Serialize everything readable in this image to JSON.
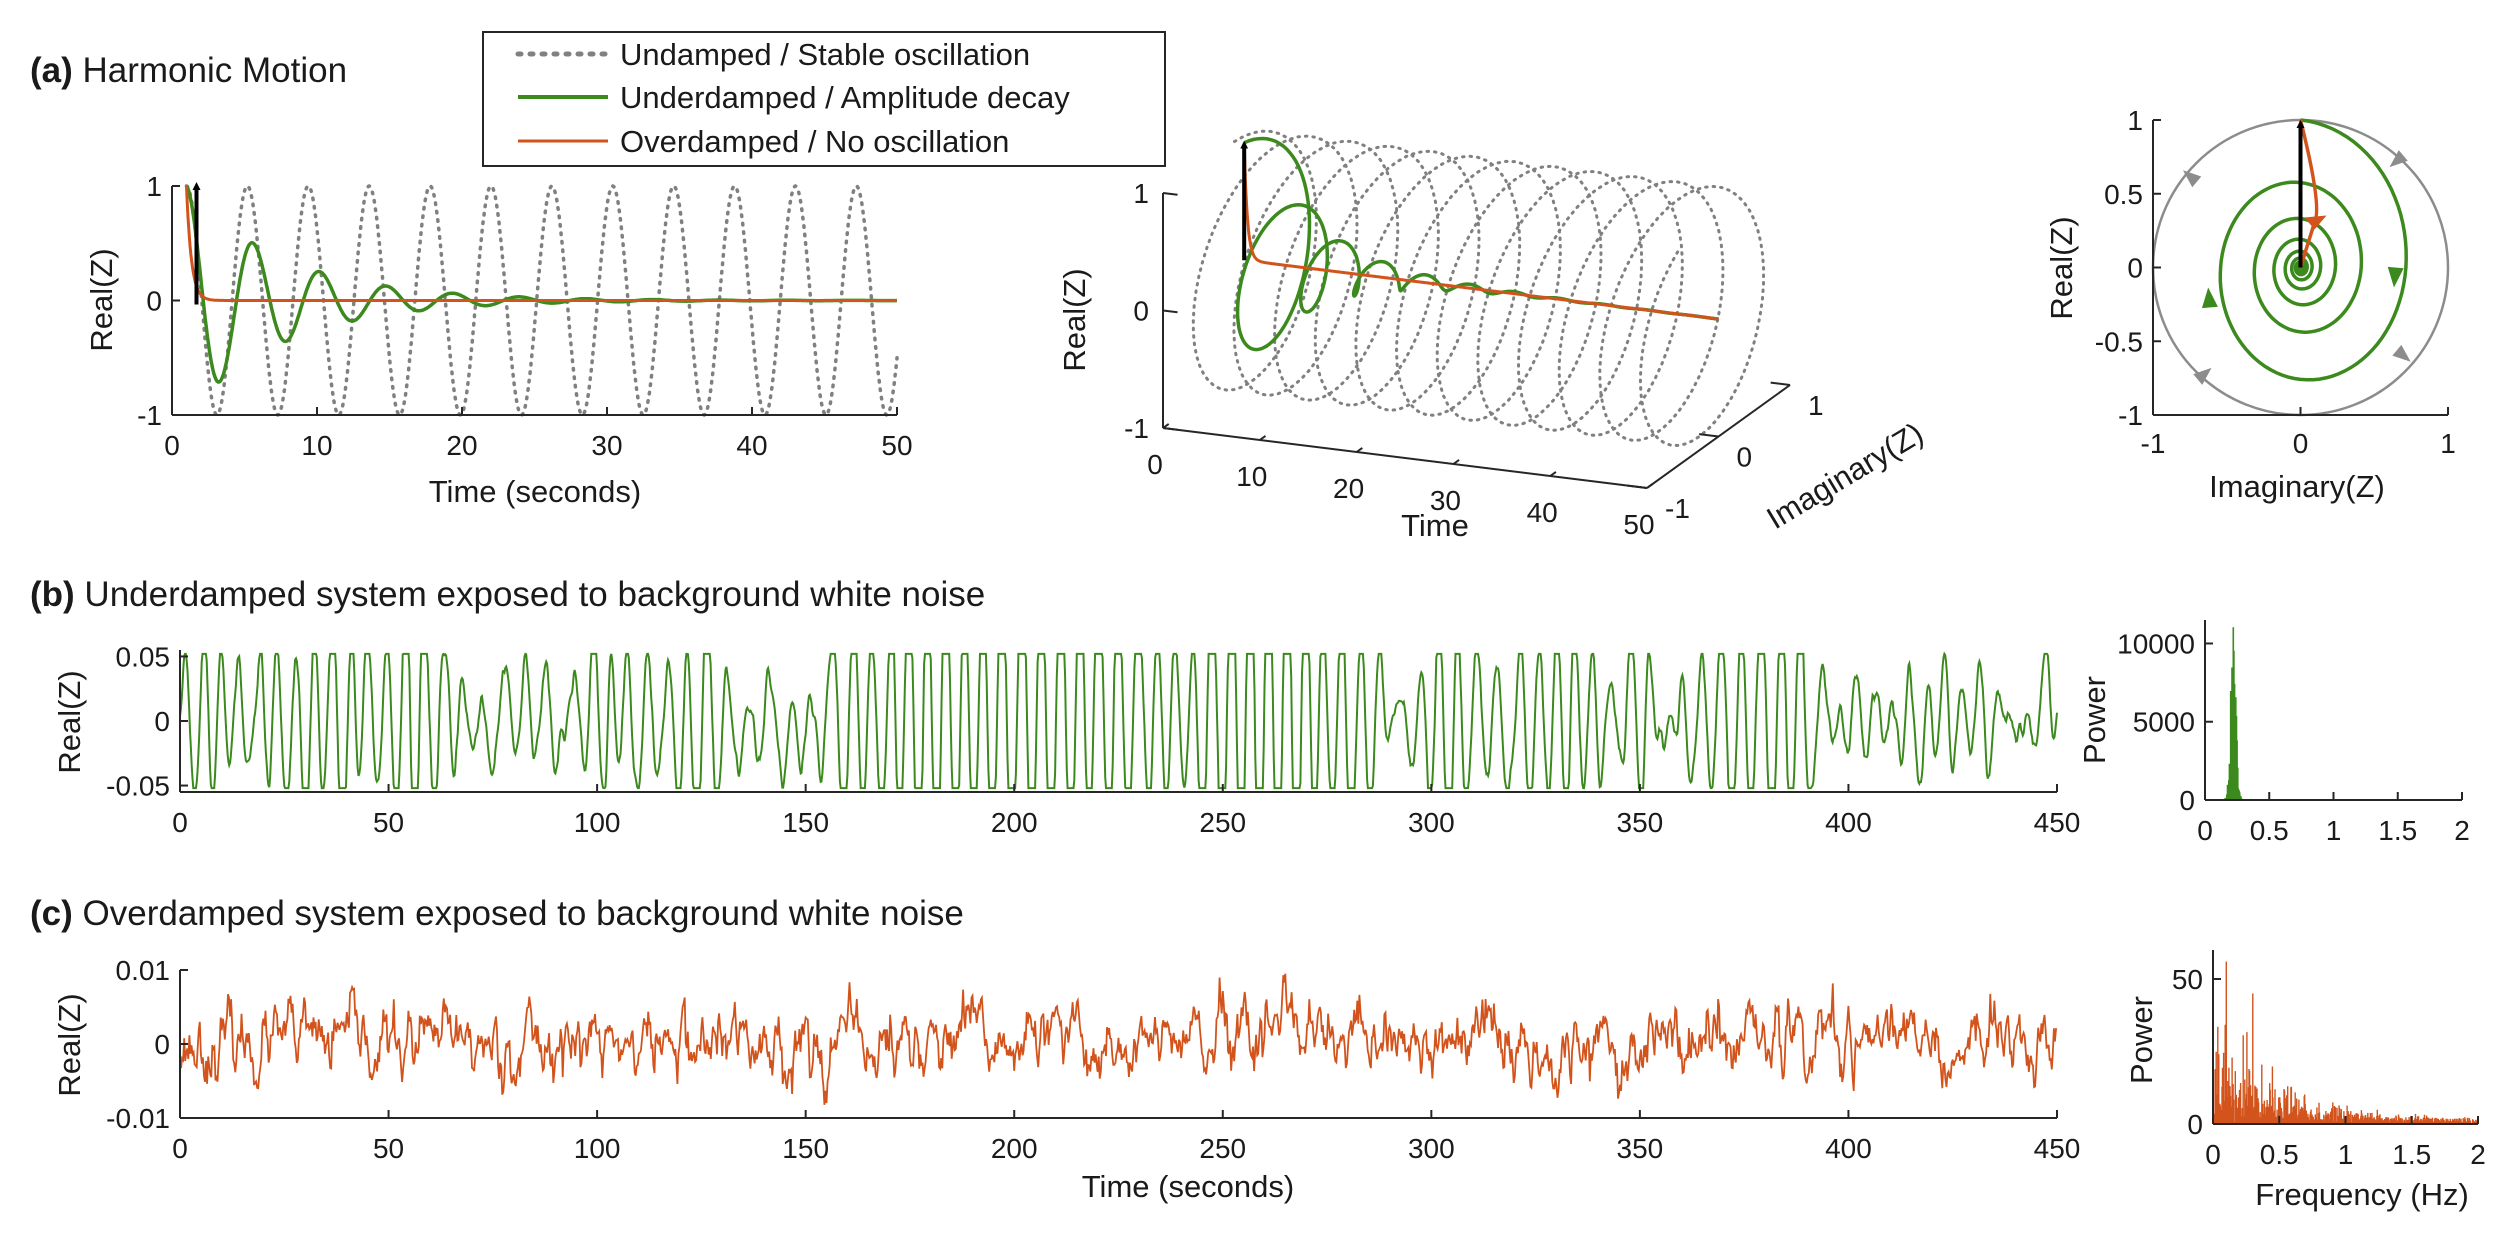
{
  "colors": {
    "undamped": "#808080",
    "underdamped": "#3c8a1e",
    "overdamped": "#d2541c",
    "arrow": "#000000",
    "axis": "#262626"
  },
  "legend": {
    "items": [
      {
        "label": "Undamped / Stable oscillation",
        "style": "dotted",
        "color": "#808080"
      },
      {
        "label": "Underdamped / Amplitude decay",
        "style": "solid",
        "color": "#3c8a1e"
      },
      {
        "label": "Overdamped / No oscillation",
        "style": "solid",
        "color": "#d2541c"
      }
    ]
  },
  "panels": {
    "a": {
      "letter": "(a)",
      "title": " Harmonic Motion"
    },
    "b": {
      "letter": "(b)",
      "title": " Underdamped system exposed to background white noise"
    },
    "c": {
      "letter": "(c)",
      "title": " Overdamped system exposed to background white noise"
    }
  },
  "chart_data": [
    {
      "id": "a1",
      "type": "line",
      "xlabel": "Time (seconds)",
      "ylabel": "Real(Z)",
      "xlim": [
        0,
        50
      ],
      "ylim": [
        -1,
        1
      ],
      "xticks": [
        "0",
        "10",
        "20",
        "30",
        "40",
        "50"
      ],
      "yticks": [
        "-1",
        "0",
        "1"
      ],
      "series": [
        {
          "name": "Undamped / Stable oscillation",
          "kind": "undamped",
          "start": 1,
          "period": 4.2,
          "amplitude": 1,
          "decay": 0
        },
        {
          "name": "Underdamped / Amplitude decay",
          "kind": "underdamped",
          "start": 1,
          "period": 4.6,
          "amplitude": 1,
          "decay": 0.15
        },
        {
          "name": "Overdamped / No oscillation",
          "kind": "overdamped",
          "start": 1,
          "amplitude": 1,
          "decay": 3.0
        }
      ],
      "annotations": [
        {
          "type": "arrow",
          "x": 1,
          "from": 0,
          "to": 1
        }
      ]
    },
    {
      "id": "a2",
      "type": "line3d",
      "xlabel": "Time",
      "ylabel": "Imaginary(Z)",
      "zlabel": "Real(Z)",
      "xlim": [
        0,
        50
      ],
      "ylim": [
        -1,
        1
      ],
      "zlim": [
        -1,
        1
      ],
      "xticks": [
        "0",
        "10",
        "20",
        "30",
        "40",
        "50"
      ],
      "yticks": [
        "-1",
        "0",
        "1"
      ],
      "zticks": [
        "-1",
        "0",
        "1"
      ]
    },
    {
      "id": "a3",
      "type": "phase",
      "xlabel": "Imaginary(Z)",
      "ylabel": "Real(Z)",
      "xlim": [
        -1,
        1
      ],
      "ylim": [
        -1,
        1
      ],
      "xticks": [
        "-1",
        "0",
        "1"
      ],
      "yticks": [
        "-1",
        "-0.5",
        "0",
        "0.5",
        "1"
      ]
    },
    {
      "id": "b",
      "type": "line",
      "xlabel": "",
      "ylabel": "Real(Z)",
      "xlim": [
        0,
        450
      ],
      "ylim": [
        -0.055,
        0.055
      ],
      "xticks": [
        "0",
        "50",
        "100",
        "150",
        "200",
        "250",
        "300",
        "350",
        "400",
        "450"
      ],
      "yticks": [
        "-0.05",
        "0",
        "0.05"
      ],
      "series": [
        {
          "name": "Underdamped",
          "kind": "noise-underdamped",
          "period": 4.6,
          "amplitude": 0.025
        }
      ]
    },
    {
      "id": "b_spec",
      "type": "bar",
      "xlabel": "",
      "ylabel": "Power",
      "xlim": [
        0,
        2
      ],
      "ylim": [
        0,
        11500
      ],
      "xticks": [
        "0",
        "0.5",
        "1",
        "1.5",
        "2"
      ],
      "yticks": [
        "0",
        "5000",
        "10000"
      ],
      "peak": {
        "frequency": 0.22,
        "power": 11000
      }
    },
    {
      "id": "c",
      "type": "line",
      "xlabel": "Time (seconds)",
      "ylabel": "Real(Z)",
      "xlim": [
        0,
        450
      ],
      "ylim": [
        -0.01,
        0.01
      ],
      "xticks": [
        "0",
        "50",
        "100",
        "150",
        "200",
        "250",
        "300",
        "350",
        "400",
        "450"
      ],
      "yticks": [
        "-0.01",
        "0",
        "0.01"
      ],
      "series": [
        {
          "name": "Overdamped",
          "kind": "noise-overdamped",
          "amplitude": 0.003
        }
      ]
    },
    {
      "id": "c_spec",
      "type": "bar",
      "xlabel": "Frequency (Hz)",
      "ylabel": "Power",
      "xlim": [
        0,
        2
      ],
      "ylim": [
        0,
        60
      ],
      "xticks": [
        "0",
        "0.5",
        "1",
        "1.5",
        "2"
      ],
      "yticks": [
        "0",
        "50"
      ],
      "peak": {
        "frequency": 0.1,
        "power": 56
      }
    }
  ]
}
